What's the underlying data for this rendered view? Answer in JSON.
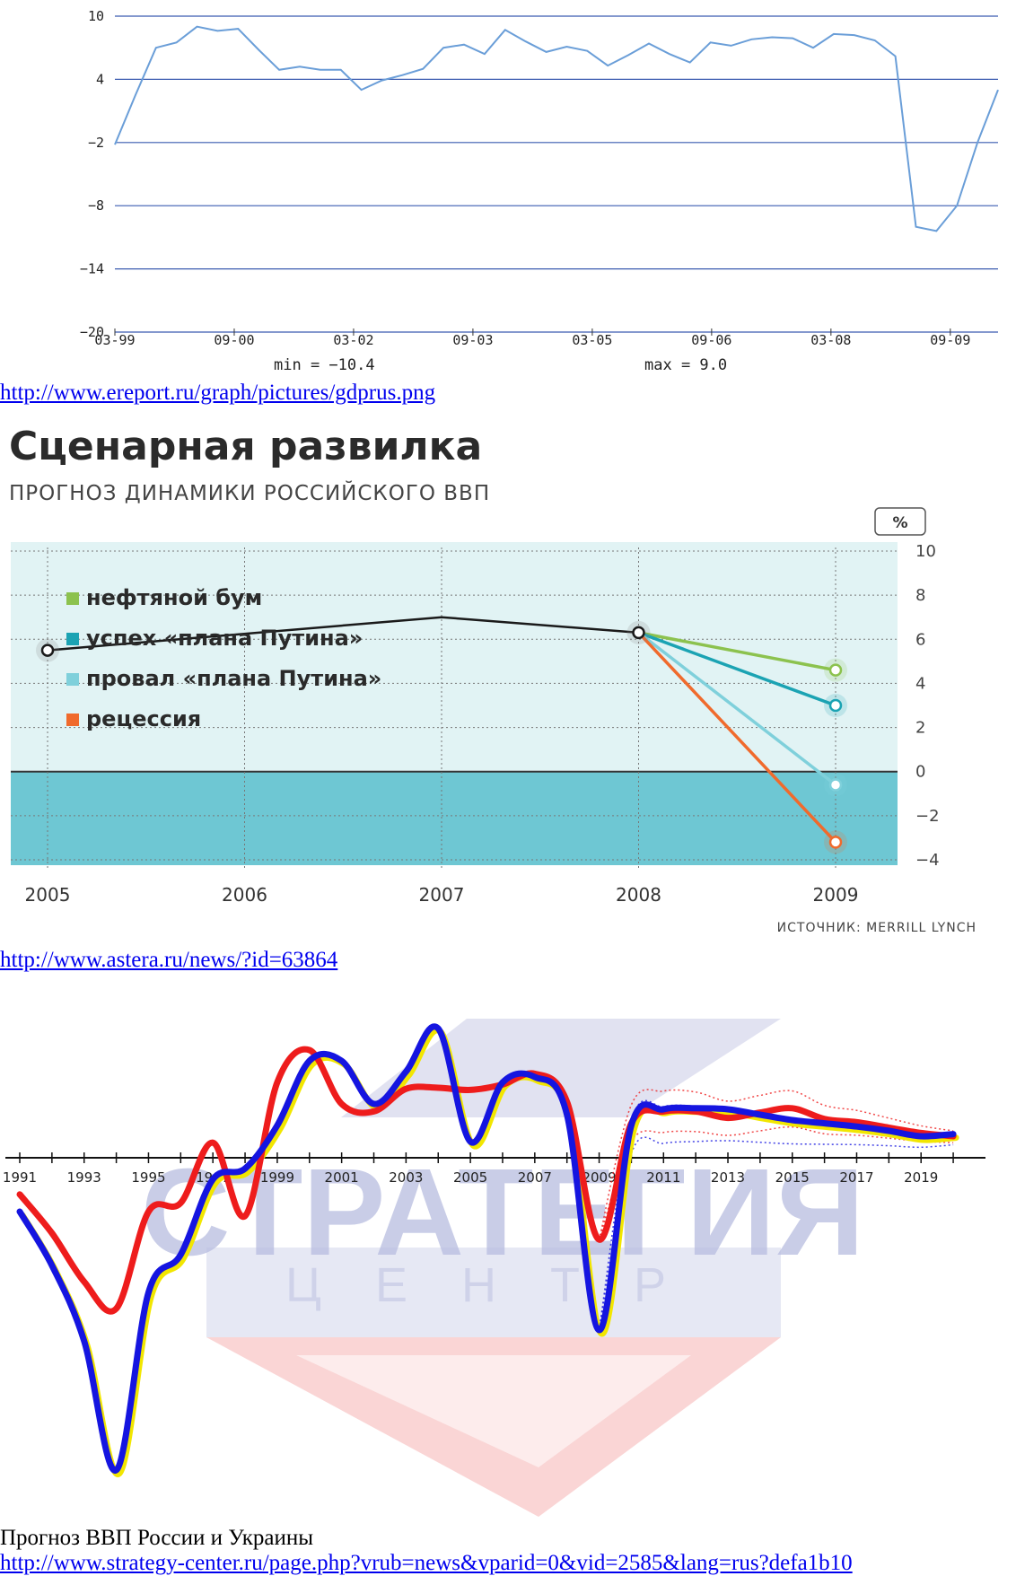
{
  "links": {
    "link1": "http://www.ereport.ru/graph/pictures/gdprus.png",
    "link2": "http://www.astera.ru/news/?id=63864",
    "link3": "http://www.strategy-center.ru/page.php?vrub=news&vparid=0&vid=2585&lang=rus?defa1b10"
  },
  "captions": {
    "chart3": "Прогноз ВВП России и Украины"
  },
  "colors": {
    "chart1_line": "#6a9ed8",
    "chart1_grid": "#3a5bb0",
    "c2_band_light": "#e1f3f4",
    "c2_band_dark": "#6ec7d3",
    "c2_oil": "#8cc24e",
    "c2_success": "#1ba3b3",
    "c2_failure": "#7fd0db",
    "c2_recession": "#f06a2c",
    "c3_red": "#ee1c1c",
    "c3_blue": "#1515e0",
    "c3_yellow": "#f2e600"
  },
  "chart_data": [
    {
      "type": "line",
      "yticks": [
        "10",
        "4",
        "−2",
        "−8",
        "−14",
        "−20"
      ],
      "xticks": [
        "03-99",
        "09-00",
        "03-02",
        "09-03",
        "03-05",
        "09-06",
        "03-08",
        "09-09"
      ],
      "ylim": [
        -20,
        10
      ],
      "grid": true,
      "annotations": {
        "min": "min = −10.4",
        "max": "max = 9.0"
      },
      "series": [
        {
          "x": [
            0,
            1,
            2,
            3,
            4,
            5,
            6,
            7,
            8,
            9,
            10,
            11,
            12,
            13,
            14,
            15,
            16,
            17,
            18,
            19,
            20,
            21,
            22,
            23,
            24,
            25,
            26,
            27,
            28,
            29,
            30,
            31,
            32,
            33,
            34,
            35,
            36,
            37,
            38,
            39,
            40,
            41,
            42,
            43
          ],
          "values": [
            -2.2,
            2.5,
            7.0,
            7.5,
            9.0,
            8.6,
            8.8,
            6.8,
            4.9,
            5.2,
            4.9,
            4.9,
            3.0,
            3.9,
            4.4,
            5.0,
            7.0,
            7.3,
            6.4,
            8.7,
            7.6,
            6.6,
            7.1,
            6.7,
            5.3,
            6.3,
            7.4,
            6.4,
            5.6,
            7.5,
            7.2,
            7.8,
            8.0,
            7.9,
            7.0,
            8.3,
            8.2,
            7.7,
            6.2,
            -10.0,
            -10.4,
            -8.0,
            -2.0,
            3.0
          ]
        }
      ]
    },
    {
      "type": "line",
      "title": "Сценарная развилка",
      "subtitle": "ПРОГНОЗ ДИНАМИКИ РОССИЙСКОГО ВВП",
      "unit": "%",
      "source": "ИСТОЧНИК: MERRILL LYNCH",
      "categories": [
        "2005",
        "2006",
        "2007",
        "2008",
        "2009"
      ],
      "yticks": [
        "10",
        "8",
        "6",
        "4",
        "2",
        "0",
        "−2",
        "−4"
      ],
      "ylim": [
        -4,
        10
      ],
      "grid": true,
      "legend": "left",
      "actual": [
        {
          "x": "2005",
          "y": 5.5
        },
        {
          "x": "2007",
          "y": 7.0
        },
        {
          "x": "2008",
          "y": 6.3
        }
      ],
      "series": [
        {
          "name": "нефтяной бум",
          "x": [
            "2008",
            "2009"
          ],
          "values": [
            6.3,
            4.6
          ]
        },
        {
          "name": "успех «плана Путина»",
          "x": [
            "2008",
            "2009"
          ],
          "values": [
            6.3,
            3.0
          ]
        },
        {
          "name": "провал «плана Путина»",
          "x": [
            "2008",
            "2009"
          ],
          "values": [
            6.3,
            -0.6
          ]
        },
        {
          "name": "рецессия",
          "x": [
            "2008",
            "2009"
          ],
          "values": [
            6.3,
            -3.2
          ]
        }
      ]
    },
    {
      "type": "line",
      "categories": [
        "1991",
        "1993",
        "1995",
        "1997",
        "1999",
        "2001",
        "2003",
        "2005",
        "2007",
        "2009",
        "2011",
        "2013",
        "2015",
        "2017",
        "2019"
      ],
      "watermark": {
        "line1": "СТРАТЕГИЯ",
        "line2": "ЦЕНТР"
      },
      "series": [
        {
          "x": [
            1991,
            1992,
            1993,
            1994,
            1995,
            1996,
            1997,
            1998,
            1999,
            2000,
            2001,
            2002,
            2003,
            2004,
            2005,
            2006,
            2007,
            2008,
            2009,
            2010,
            2011,
            2012,
            2013,
            2014,
            2015,
            2016,
            2017,
            2018,
            2019,
            2020
          ],
          "values": [
            -3.4,
            -7.0,
            -11.5,
            -14.0,
            -5.0,
            -4.2,
            1.4,
            -5.4,
            7.0,
            10.0,
            5.0,
            4.3,
            6.4,
            6.5,
            6.3,
            6.8,
            7.8,
            5.2,
            -7.6,
            3.2,
            4.3,
            4.3,
            3.7,
            4.2,
            4.6,
            3.6,
            3.3,
            2.8,
            2.3,
            2.0
          ]
        },
        {
          "x": [
            1991,
            1992,
            1993,
            1994,
            1995,
            1996,
            1997,
            1998,
            1999,
            2000,
            2001,
            2002,
            2003,
            2004,
            2005,
            2006,
            2007,
            2008,
            2009,
            2010,
            2011,
            2012,
            2013,
            2014,
            2015,
            2016,
            2017,
            2018,
            2019,
            2020
          ],
          "values": [
            -5.0,
            -10.0,
            -17.0,
            -29.0,
            -12.5,
            -9.0,
            -2.0,
            -1.0,
            3.0,
            9.0,
            9.0,
            5.0,
            8.0,
            12.0,
            1.5,
            7.0,
            7.5,
            4.0,
            -16.0,
            3.0,
            4.5,
            4.6,
            4.5,
            4.0,
            3.5,
            3.2,
            2.9,
            2.5,
            2.0,
            2.2
          ]
        }
      ]
    }
  ]
}
